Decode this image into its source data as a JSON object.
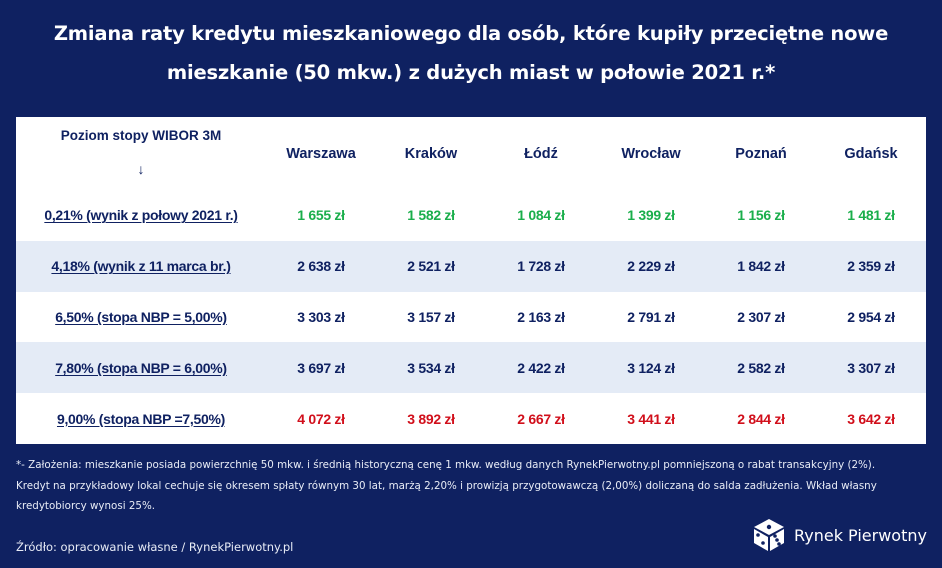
{
  "title": {
    "line1": "Zmiana raty kredytu mieszkaniowego dla osób, które kupiły przeciętne nowe",
    "line2": "mieszkanie (50 mkw.) z dużych miast w połowie 2021 r.*"
  },
  "table": {
    "corner_label": "Poziom stopy WIBOR 3M",
    "corner_arrow": "↓",
    "columns": [
      "Warszawa",
      "Kraków",
      "Łódź",
      "Wrocław",
      "Poznań",
      "Gdańsk"
    ],
    "rows": [
      {
        "label": "0,21% (wynik z połowy 2021 r.)",
        "tone": "green",
        "values": [
          "1 655 zł",
          "1 582 zł",
          "1 084 zł",
          "1 399 zł",
          "1 156 zł",
          "1 481 zł"
        ]
      },
      {
        "label": "4,18% (wynik z 11 marca br.)",
        "tone": "navy",
        "values": [
          "2 638 zł",
          "2 521 zł",
          "1 728 zł",
          "2 229 zł",
          "1 842 zł",
          "2 359 zł"
        ]
      },
      {
        "label": "6,50% (stopa NBP = 5,00%)",
        "tone": "navy",
        "values": [
          "3 303 zł",
          "3 157 zł",
          "2 163 zł",
          "2 791 zł",
          "2 307 zł",
          "2 954 zł"
        ]
      },
      {
        "label": "7,80% (stopa NBP = 6,00%)",
        "tone": "navy",
        "values": [
          "3 697 zł",
          "3 534 zł",
          "2 422 zł",
          "3 124 zł",
          "2 582 zł",
          "3 307 zł"
        ]
      },
      {
        "label": "9,00% (stopa NBP =7,50%)",
        "tone": "red",
        "values": [
          "4 072 zł",
          "3 892 zł",
          "2 667 zł",
          "3 441 zł",
          "2 844 zł",
          "3 642 zł"
        ]
      }
    ]
  },
  "footnote": {
    "line1": "*- Założenia: mieszkanie posiada powierzchnię 50 mkw. i średnią historyczną cenę 1 mkw. według danych RynekPierwotny.pl pomniejszoną o rabat transakcyjny (2%).",
    "line2": "Kredyt na przykładowy lokal cechuje się okresem spłaty równym 30 lat, marżą 2,20% i prowizją przygotowawczą (2,00%) doliczaną do salda zadłużenia. Wkład własny",
    "line3": "kredytobiorcy wynosi 25%."
  },
  "source": "Źródło: opracowanie własne / RynekPierwotny.pl",
  "logo": {
    "text": "Rynek Pierwotny",
    "icon": "cube-logo-icon"
  },
  "colors": {
    "background": "#0f2161",
    "navy_text": "#0f2161",
    "green": "#1aae4b",
    "red": "#d10f1b",
    "row_stripe": "#e4ebf6"
  }
}
